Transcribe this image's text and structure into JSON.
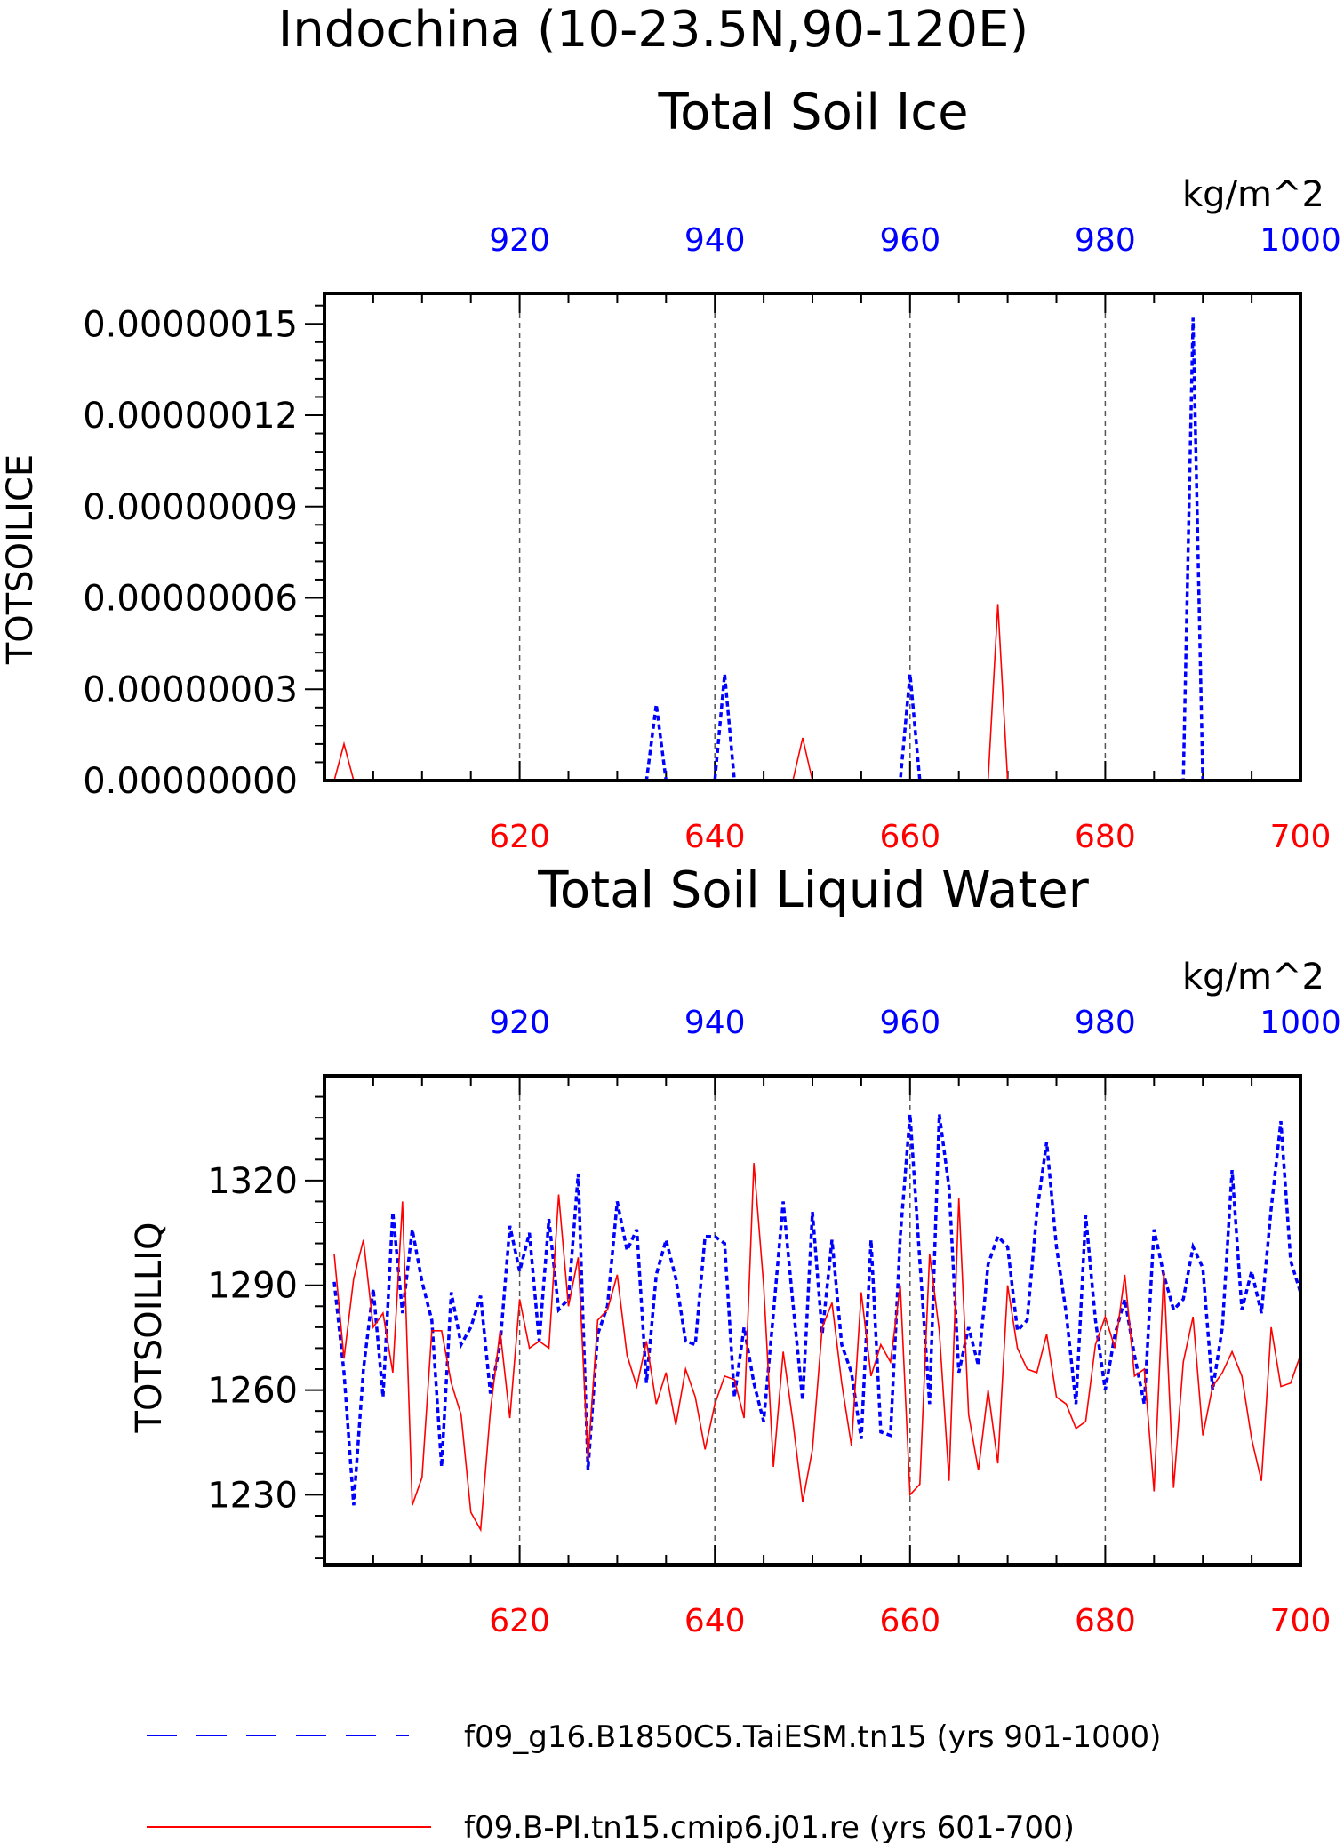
{
  "page": {
    "title": "Indochina (10-23.5N,90-120E)"
  },
  "legend": {
    "placement": "bottom",
    "entries": [
      {
        "label": "f09_g16.B1850C5.TaiESM.tn15 (yrs 901-1000)",
        "color": "#0000ff",
        "style": "dashed"
      },
      {
        "label": "f09.B-PI.tn15.cmip6.j01.re (yrs 601-700)",
        "color": "#ff0000",
        "style": "solid"
      }
    ]
  },
  "chart_data": [
    {
      "type": "line",
      "title": "Total Soil Ice",
      "units": "kg/m^2",
      "ylabel": "TOTSOILICE",
      "ylim": [
        0,
        1.6e-07
      ],
      "yticks": [
        0,
        3e-08,
        6e-08,
        9e-08,
        1.2e-07,
        1.5e-07
      ],
      "yticklabels": [
        "0.00000000",
        "0.00000003",
        "0.00000006",
        "0.00000009",
        "0.00000012",
        "0.00000015"
      ],
      "x_bottom": {
        "range": [
          600,
          700
        ],
        "ticks": [
          620,
          640,
          660,
          680,
          700
        ],
        "color": "#ff0000"
      },
      "x_top": {
        "range": [
          900,
          1000
        ],
        "ticks": [
          920,
          940,
          960,
          980,
          1000
        ],
        "color": "#0000ff"
      },
      "grid": "vertical dashed at major ticks",
      "series": [
        {
          "name": "f09_g16.B1850C5.TaiESM.tn15 (yrs 901-1000)",
          "axis": "top",
          "color": "#0000ff",
          "style": "dashed",
          "x": [
            901,
            902,
            903,
            904,
            905,
            906,
            907,
            908,
            909,
            910,
            911,
            912,
            913,
            914,
            915,
            916,
            917,
            918,
            919,
            920,
            921,
            922,
            923,
            924,
            925,
            926,
            927,
            928,
            929,
            930,
            931,
            932,
            933,
            934,
            935,
            936,
            937,
            938,
            939,
            940,
            941,
            942,
            943,
            944,
            945,
            946,
            947,
            948,
            949,
            950,
            951,
            952,
            953,
            954,
            955,
            956,
            957,
            958,
            959,
            960,
            961,
            962,
            963,
            964,
            965,
            966,
            967,
            968,
            969,
            970,
            971,
            972,
            973,
            974,
            975,
            976,
            977,
            978,
            979,
            980,
            981,
            982,
            983,
            984,
            985,
            986,
            987,
            988,
            989,
            990,
            991,
            992,
            993,
            994,
            995,
            996,
            997,
            998,
            999,
            1000
          ],
          "y": [
            0,
            0,
            0,
            0,
            0,
            0,
            0,
            0,
            0,
            0,
            0,
            0,
            0,
            0,
            0,
            0,
            0,
            0,
            0,
            0,
            0,
            0,
            0,
            0,
            0,
            0,
            0,
            0,
            0,
            0,
            0,
            0,
            0,
            2.5e-08,
            0,
            0,
            0,
            0,
            0,
            0,
            3.5e-08,
            0,
            0,
            0,
            0,
            0,
            0,
            0,
            0,
            0,
            0,
            0,
            0,
            0,
            0,
            0,
            0,
            0,
            0,
            3.5e-08,
            0,
            0,
            0,
            0,
            0,
            0,
            0,
            0,
            0,
            0,
            0,
            0,
            0,
            0,
            0,
            0,
            0,
            0,
            0,
            0,
            0,
            0,
            0,
            0,
            0,
            0,
            0,
            0,
            1.52e-07,
            0,
            0,
            0,
            0,
            0,
            0,
            0,
            0,
            0,
            0,
            0
          ]
        },
        {
          "name": "f09.B-PI.tn15.cmip6.j01.re (yrs 601-700)",
          "axis": "bottom",
          "color": "#ff0000",
          "style": "solid",
          "x": [
            601,
            602,
            603,
            604,
            605,
            606,
            607,
            608,
            609,
            610,
            611,
            612,
            613,
            614,
            615,
            616,
            617,
            618,
            619,
            620,
            621,
            622,
            623,
            624,
            625,
            626,
            627,
            628,
            629,
            630,
            631,
            632,
            633,
            634,
            635,
            636,
            637,
            638,
            639,
            640,
            641,
            642,
            643,
            644,
            645,
            646,
            647,
            648,
            649,
            650,
            651,
            652,
            653,
            654,
            655,
            656,
            657,
            658,
            659,
            660,
            661,
            662,
            663,
            664,
            665,
            666,
            667,
            668,
            669,
            670,
            671,
            672,
            673,
            674,
            675,
            676,
            677,
            678,
            679,
            680,
            681,
            682,
            683,
            684,
            685,
            686,
            687,
            688,
            689,
            690,
            691,
            692,
            693,
            694,
            695,
            696,
            697,
            698,
            699,
            700
          ],
          "y": [
            0,
            1.2e-08,
            0,
            0,
            0,
            0,
            0,
            0,
            0,
            0,
            0,
            0,
            0,
            0,
            0,
            0,
            0,
            0,
            0,
            0,
            0,
            0,
            0,
            0,
            0,
            0,
            0,
            0,
            0,
            0,
            0,
            0,
            0,
            0,
            0,
            0,
            0,
            0,
            0,
            0,
            0,
            0,
            0,
            0,
            0,
            0,
            0,
            0,
            1.4e-08,
            0,
            0,
            0,
            0,
            0,
            0,
            0,
            0,
            0,
            0,
            0,
            0,
            0,
            0,
            0,
            0,
            0,
            0,
            0,
            5.8e-08,
            0,
            0,
            0,
            0,
            0,
            0,
            0,
            0,
            0,
            0,
            0,
            0,
            0,
            0,
            0,
            0,
            0,
            0,
            0,
            0,
            0,
            0,
            0,
            0,
            0,
            0,
            0,
            0,
            0,
            0,
            0
          ]
        }
      ]
    },
    {
      "type": "line",
      "title": "Total Soil Liquid Water",
      "units": "kg/m^2",
      "ylabel": "TOTSOILLIQ",
      "ylim": [
        1210,
        1350
      ],
      "yticks": [
        1230,
        1260,
        1290,
        1320
      ],
      "yticklabels": [
        "1230",
        "1260",
        "1290",
        "1320"
      ],
      "x_bottom": {
        "range": [
          600,
          700
        ],
        "ticks": [
          620,
          640,
          660,
          680,
          700
        ],
        "color": "#ff0000"
      },
      "x_top": {
        "range": [
          900,
          1000
        ],
        "ticks": [
          920,
          940,
          960,
          980,
          1000
        ],
        "color": "#0000ff"
      },
      "grid": "vertical dashed at major ticks",
      "series": [
        {
          "name": "f09_g16.B1850C5.TaiESM.tn15 (yrs 901-1000)",
          "axis": "top",
          "color": "#0000ff",
          "style": "dashed",
          "x": [
            901,
            902,
            903,
            904,
            905,
            906,
            907,
            908,
            909,
            910,
            911,
            912,
            913,
            914,
            915,
            916,
            917,
            918,
            919,
            920,
            921,
            922,
            923,
            924,
            925,
            926,
            927,
            928,
            929,
            930,
            931,
            932,
            933,
            934,
            935,
            936,
            937,
            938,
            939,
            940,
            941,
            942,
            943,
            944,
            945,
            946,
            947,
            948,
            949,
            950,
            951,
            952,
            953,
            954,
            955,
            956,
            957,
            958,
            959,
            960,
            961,
            962,
            963,
            964,
            965,
            966,
            967,
            968,
            969,
            970,
            971,
            972,
            973,
            974,
            975,
            976,
            977,
            978,
            979,
            980,
            981,
            982,
            983,
            984,
            985,
            986,
            987,
            988,
            989,
            990,
            991,
            992,
            993,
            994,
            995,
            996,
            997,
            998,
            999,
            1000
          ],
          "y": [
            1291,
            1265,
            1227,
            1266,
            1289,
            1258,
            1311,
            1282,
            1306,
            1291,
            1280,
            1238,
            1288,
            1273,
            1278,
            1287,
            1259,
            1273,
            1307,
            1294,
            1305,
            1274,
            1309,
            1283,
            1286,
            1322,
            1237,
            1276,
            1284,
            1314,
            1300,
            1306,
            1262,
            1293,
            1303,
            1292,
            1274,
            1273,
            1304,
            1304,
            1302,
            1258,
            1278,
            1262,
            1251,
            1282,
            1314,
            1285,
            1257,
            1311,
            1276,
            1303,
            1273,
            1265,
            1246,
            1303,
            1248,
            1247,
            1304,
            1339,
            1297,
            1256,
            1339,
            1318,
            1265,
            1278,
            1267,
            1296,
            1304,
            1301,
            1277,
            1280,
            1311,
            1331,
            1301,
            1282,
            1256,
            1310,
            1280,
            1260,
            1276,
            1286,
            1270,
            1256,
            1306,
            1293,
            1283,
            1286,
            1301,
            1295,
            1260,
            1278,
            1323,
            1283,
            1294,
            1282,
            1312,
            1337,
            1297,
            1288
          ]
        },
        {
          "name": "f09.B-PI.tn15.cmip6.j01.re (yrs 601-700)",
          "axis": "bottom",
          "color": "#ff0000",
          "style": "solid",
          "x": [
            601,
            602,
            603,
            604,
            605,
            606,
            607,
            608,
            609,
            610,
            611,
            612,
            613,
            614,
            615,
            616,
            617,
            618,
            619,
            620,
            621,
            622,
            623,
            624,
            625,
            626,
            627,
            628,
            629,
            630,
            631,
            632,
            633,
            634,
            635,
            636,
            637,
            638,
            639,
            640,
            641,
            642,
            643,
            644,
            645,
            646,
            647,
            648,
            649,
            650,
            651,
            652,
            653,
            654,
            655,
            656,
            657,
            658,
            659,
            660,
            661,
            662,
            663,
            664,
            665,
            666,
            667,
            668,
            669,
            670,
            671,
            672,
            673,
            674,
            675,
            676,
            677,
            678,
            679,
            680,
            681,
            682,
            683,
            684,
            685,
            686,
            687,
            688,
            689,
            690,
            691,
            692,
            693,
            694,
            695,
            696,
            697,
            698,
            699,
            700
          ],
          "y": [
            1299,
            1269,
            1292,
            1303,
            1278,
            1282,
            1265,
            1314,
            1227,
            1235,
            1277,
            1277,
            1262,
            1253,
            1225,
            1220,
            1254,
            1277,
            1252,
            1286,
            1272,
            1274,
            1272,
            1316,
            1284,
            1298,
            1240,
            1280,
            1283,
            1293,
            1270,
            1261,
            1274,
            1256,
            1265,
            1250,
            1266,
            1258,
            1243,
            1256,
            1264,
            1263,
            1252,
            1325,
            1290,
            1238,
            1271,
            1251,
            1228,
            1243,
            1278,
            1285,
            1262,
            1244,
            1288,
            1264,
            1273,
            1268,
            1290,
            1230,
            1233,
            1299,
            1277,
            1234,
            1315,
            1253,
            1237,
            1260,
            1239,
            1290,
            1272,
            1266,
            1265,
            1276,
            1258,
            1256,
            1249,
            1251,
            1273,
            1281,
            1272,
            1293,
            1264,
            1266,
            1231,
            1294,
            1232,
            1268,
            1281,
            1247,
            1261,
            1265,
            1271,
            1264,
            1246,
            1234,
            1278,
            1261,
            1262,
            1270
          ]
        }
      ]
    }
  ]
}
